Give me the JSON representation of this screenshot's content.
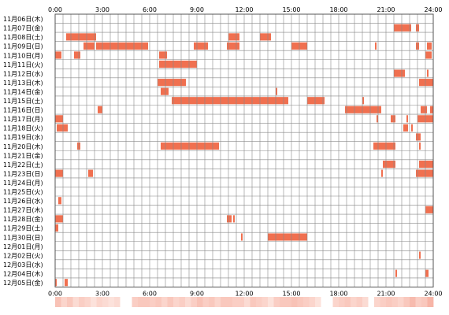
{
  "chart_data": {
    "type": "heatmap",
    "xlim": [
      0,
      24
    ],
    "x_tick_labels": [
      "0:00",
      "3:00",
      "6:00",
      "9:00",
      "12:00",
      "15:00",
      "18:00",
      "21:00",
      "24:00"
    ],
    "grid": true,
    "colors": {
      "bar": "#f07050",
      "grid": "#888888",
      "border": "#555555",
      "summary_light": "#fde8e2",
      "summary_dark": "#f5a898"
    },
    "rows": [
      {
        "label": "11月06日(木)",
        "intervals": []
      },
      {
        "label": "11月07日(金)",
        "intervals": [
          [
            21.5,
            22.6
          ],
          [
            22.9,
            23.1
          ]
        ]
      },
      {
        "label": "11月08日(土)",
        "intervals": [
          [
            0.7,
            2.6
          ],
          [
            11.0,
            11.7
          ],
          [
            13.0,
            13.7
          ]
        ]
      },
      {
        "label": "11月09日(日)",
        "intervals": [
          [
            1.8,
            2.5
          ],
          [
            2.6,
            5.9
          ],
          [
            8.8,
            9.7
          ],
          [
            10.9,
            11.7
          ],
          [
            15.0,
            16.0
          ],
          [
            20.3,
            20.4
          ],
          [
            22.9,
            23.1
          ],
          [
            23.6,
            23.9
          ]
        ]
      },
      {
        "label": "11月10日(月)",
        "intervals": [
          [
            0.0,
            0.4
          ],
          [
            1.2,
            1.6
          ],
          [
            6.6,
            7.1
          ],
          [
            23.5,
            23.9
          ]
        ]
      },
      {
        "label": "11月11日(火)",
        "intervals": [
          [
            6.6,
            9.0
          ]
        ]
      },
      {
        "label": "11月12日(水)",
        "intervals": [
          [
            21.5,
            22.2
          ],
          [
            23.6,
            23.7
          ]
        ]
      },
      {
        "label": "11月13日(木)",
        "intervals": [
          [
            6.5,
            8.3
          ],
          [
            23.1,
            24.0
          ]
        ]
      },
      {
        "label": "11月14日(金)",
        "intervals": [
          [
            6.7,
            7.2
          ],
          [
            14.0,
            14.1
          ]
        ]
      },
      {
        "label": "11月15日(土)",
        "intervals": [
          [
            7.4,
            14.2
          ],
          [
            14.2,
            14.8
          ],
          [
            16.0,
            17.1
          ],
          [
            19.5,
            19.6
          ]
        ]
      },
      {
        "label": "11月16日(日)",
        "intervals": [
          [
            2.7,
            3.0
          ],
          [
            18.4,
            20.7
          ],
          [
            23.2,
            23.6
          ],
          [
            23.8,
            24.0
          ]
        ]
      },
      {
        "label": "11月17日(月)",
        "intervals": [
          [
            0.0,
            0.5
          ],
          [
            20.4,
            20.5
          ],
          [
            21.3,
            21.6
          ],
          [
            22.3,
            22.4
          ],
          [
            23.0,
            23.4
          ],
          [
            23.4,
            24.0
          ]
        ]
      },
      {
        "label": "11月18日(火)",
        "intervals": [
          [
            0.1,
            0.8
          ],
          [
            22.1,
            22.4
          ],
          [
            22.6,
            22.7
          ]
        ]
      },
      {
        "label": "11月19日(水)",
        "intervals": [
          [
            22.9,
            23.2
          ]
        ]
      },
      {
        "label": "11月20日(木)",
        "intervals": [
          [
            1.4,
            1.6
          ],
          [
            6.7,
            10.4
          ],
          [
            20.2,
            21.6
          ],
          [
            23.1,
            23.2
          ]
        ]
      },
      {
        "label": "11月21日(金)",
        "intervals": []
      },
      {
        "label": "11月22日(土)",
        "intervals": [
          [
            20.8,
            21.6
          ],
          [
            23.1,
            23.6
          ],
          [
            23.6,
            24.0
          ]
        ]
      },
      {
        "label": "11月23日(日)",
        "intervals": [
          [
            0.0,
            0.5
          ],
          [
            2.1,
            2.4
          ],
          [
            20.7,
            20.8
          ],
          [
            22.9,
            23.5
          ],
          [
            23.5,
            24.0
          ]
        ]
      },
      {
        "label": "11月24日(月)",
        "intervals": []
      },
      {
        "label": "11月25日(火)",
        "intervals": []
      },
      {
        "label": "11月26日(水)",
        "intervals": [
          [
            0.2,
            0.4
          ]
        ]
      },
      {
        "label": "11月27日(木)",
        "intervals": [
          [
            23.5,
            24.0
          ]
        ]
      },
      {
        "label": "11月28日(金)",
        "intervals": [
          [
            0.0,
            0.5
          ],
          [
            10.9,
            11.2
          ],
          [
            11.3,
            11.4
          ]
        ]
      },
      {
        "label": "11月29日(土)",
        "intervals": [
          [
            0.0,
            0.2
          ]
        ]
      },
      {
        "label": "11月30日(日)",
        "intervals": [
          [
            11.8,
            11.9
          ],
          [
            13.5,
            16.0
          ]
        ]
      },
      {
        "label": "12月01日(月)",
        "intervals": []
      },
      {
        "label": "12月02日(火)",
        "intervals": [
          [
            23.1,
            23.2
          ]
        ]
      },
      {
        "label": "12月03日(水)",
        "intervals": []
      },
      {
        "label": "12月04日(木)",
        "intervals": [
          [
            21.6,
            21.7
          ],
          [
            23.5,
            23.7
          ]
        ]
      },
      {
        "label": "12月05日(金)",
        "intervals": [
          [
            0.0,
            0.1
          ],
          [
            0.6,
            0.8
          ]
        ]
      }
    ],
    "summary_strip": [
      0.6,
      0.3,
      0.5,
      0.2,
      0.4,
      0.3,
      0.1,
      0.3,
      0.2,
      0.1,
      0.2,
      0.0,
      0.0,
      0.4,
      0.5,
      0.5,
      0.4,
      0.5,
      0.3,
      0.5,
      0.3,
      0.4,
      0.2,
      0.4,
      0.6,
      0.4,
      0.5,
      0.3,
      0.5,
      0.5,
      0.4,
      0.4,
      0.2,
      0.5,
      0.4,
      0.3,
      0.1,
      0.4,
      0.5,
      0.5,
      0.6,
      0.5,
      0.4,
      0.3,
      0.1,
      0.0,
      0.0,
      0.3,
      0.4,
      0.5,
      0.3,
      0.4,
      0.2,
      0.0,
      0.3,
      0.4,
      0.5,
      0.4,
      0.3,
      0.5,
      0.7,
      0.4,
      0.5,
      0.8
    ]
  }
}
